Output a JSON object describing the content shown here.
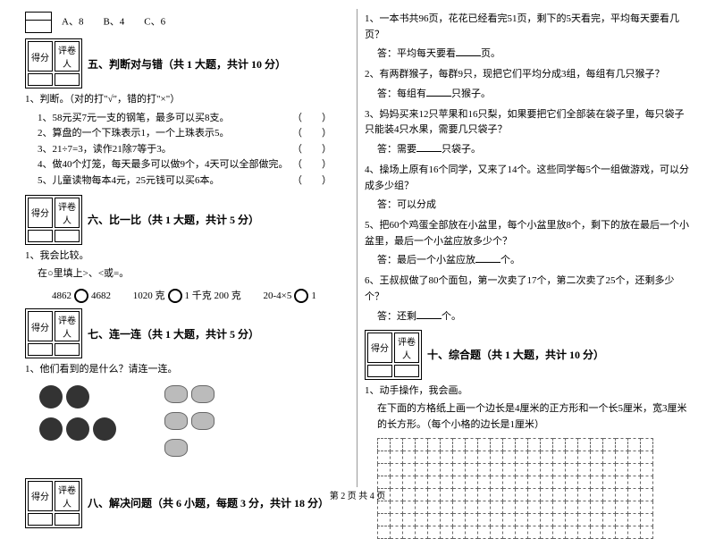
{
  "footer": "第 2 页 共 4 页",
  "scorebox": {
    "score": "得分",
    "grader": "评卷人"
  },
  "left": {
    "top_choices": "A、8　　B、4　　C、6",
    "s5": {
      "title": "五、判断对与错（共 1 大题，共计 10 分）",
      "q": "1、判断。（对的打\"√\"，错的打\"×\"）",
      "items": [
        "1、58元买7元一支的钢笔，最多可以买8支。",
        "2、算盘的一个下珠表示1，一个上珠表示5。",
        "3、21÷7=3，读作21除7等于3。",
        "4、做40个灯笼，每天最多可以做9个，4天可以全部做完。",
        "5、儿童读物每本4元，25元钱可以买6本。"
      ]
    },
    "s6": {
      "title": "六、比一比（共 1 大题，共计 5 分）",
      "q": "1、我会比较。",
      "instr": "在○里填上>、<或=。",
      "c1a": "4862",
      "c1b": "4682",
      "c2a": "1020 克",
      "c2b": "1 千克 200 克",
      "c3a": "20-4×5",
      "c3b": "1"
    },
    "s7": {
      "title": "七、连一连（共 1 大题，共计 5 分）",
      "q": "1、他们看到的是什么？请连一连。"
    },
    "s8": {
      "title": "八、解决问题（共 6 小题，每题 3 分，共计 18 分）"
    }
  },
  "right": {
    "q1": "1、一本书共96页，花花已经看完51页，剩下的5天看完，平均每天要看几页？",
    "a1_pre": "答：平均每天要看",
    "a1_suf": "页。",
    "q2": "2、有两群猴子，每群9只，现把它们平均分成3组，每组有几只猴子？",
    "a2_pre": "答：每组有",
    "a2_suf": "只猴子。",
    "q3": "3、妈妈买来12只苹果和16只梨，如果要把它们全部装在袋子里，每只袋子只能装4只水果，需要几只袋子？",
    "a3_pre": "答：需要",
    "a3_suf": "只袋子。",
    "q4": "4、操场上原有16个同学，又来了14个。这些同学每5个一组做游戏，可以分成多少组？",
    "a4": "答：可以分成",
    "q5": "5、把60个鸡蛋全部放在小盆里，每个小盆里放8个，剩下的放在最后一个小盆里，最后一个小盆应放多少个？",
    "a5_pre": "答：最后一个小盆应放",
    "a5_suf": "个。",
    "q6": "6、王叔叔做了80个面包，第一次卖了17个，第二次卖了25个，还剩多少个？",
    "a6_pre": "答：还剩",
    "a6_suf": "个。",
    "s10": {
      "title": "十、综合题（共 1 大题，共计 10 分）",
      "q": "1、动手操作，我会画。",
      "instr": "在下面的方格纸上画一个边长是4厘米的正方形和一个长5厘米，宽3厘米的长方形。（每个小格的边长是1厘米）"
    }
  },
  "grid": {
    "rows": 8,
    "cols": 22
  }
}
